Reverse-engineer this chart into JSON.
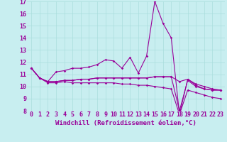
{
  "xlabel": "Windchill (Refroidissement éolien,°C)",
  "background_color": "#c8eef0",
  "line_color": "#990099",
  "x_values": [
    0,
    1,
    2,
    3,
    4,
    5,
    6,
    7,
    8,
    9,
    10,
    11,
    12,
    13,
    14,
    15,
    16,
    17,
    18,
    19,
    20,
    21,
    22,
    23
  ],
  "line1": [
    11.5,
    10.7,
    10.4,
    11.2,
    11.3,
    11.5,
    11.5,
    11.6,
    11.8,
    12.2,
    12.1,
    11.5,
    12.4,
    11.1,
    12.5,
    17.0,
    15.2,
    14.0,
    7.7,
    10.6,
    10.1,
    9.8,
    9.7,
    9.7
  ],
  "line2": [
    11.5,
    10.7,
    10.4,
    10.4,
    10.5,
    10.5,
    10.6,
    10.6,
    10.7,
    10.7,
    10.7,
    10.7,
    10.7,
    10.7,
    10.7,
    10.8,
    10.8,
    10.8,
    10.4,
    10.6,
    10.2,
    10.0,
    9.8,
    9.7
  ],
  "line3": [
    11.5,
    10.7,
    10.4,
    10.4,
    10.5,
    10.5,
    10.6,
    10.6,
    10.7,
    10.7,
    10.7,
    10.7,
    10.7,
    10.7,
    10.7,
    10.8,
    10.8,
    10.8,
    8.0,
    10.5,
    10.0,
    9.8,
    9.7,
    9.7
  ],
  "line4": [
    11.5,
    10.7,
    10.3,
    10.3,
    10.4,
    10.3,
    10.3,
    10.3,
    10.3,
    10.3,
    10.3,
    10.2,
    10.2,
    10.1,
    10.1,
    10.0,
    9.9,
    9.8,
    7.7,
    9.7,
    9.5,
    9.3,
    9.1,
    9.0
  ],
  "ylim": [
    8,
    17
  ],
  "xlim": [
    -0.5,
    23.5
  ],
  "yticks": [
    8,
    9,
    10,
    11,
    12,
    13,
    14,
    15,
    16,
    17
  ],
  "xticks": [
    0,
    1,
    2,
    3,
    4,
    5,
    6,
    7,
    8,
    9,
    10,
    11,
    12,
    13,
    14,
    15,
    16,
    17,
    18,
    19,
    20,
    21,
    22,
    23
  ],
  "grid_color": "#aadddd",
  "xlabel_fontsize": 6.5,
  "tick_fontsize": 6.0
}
